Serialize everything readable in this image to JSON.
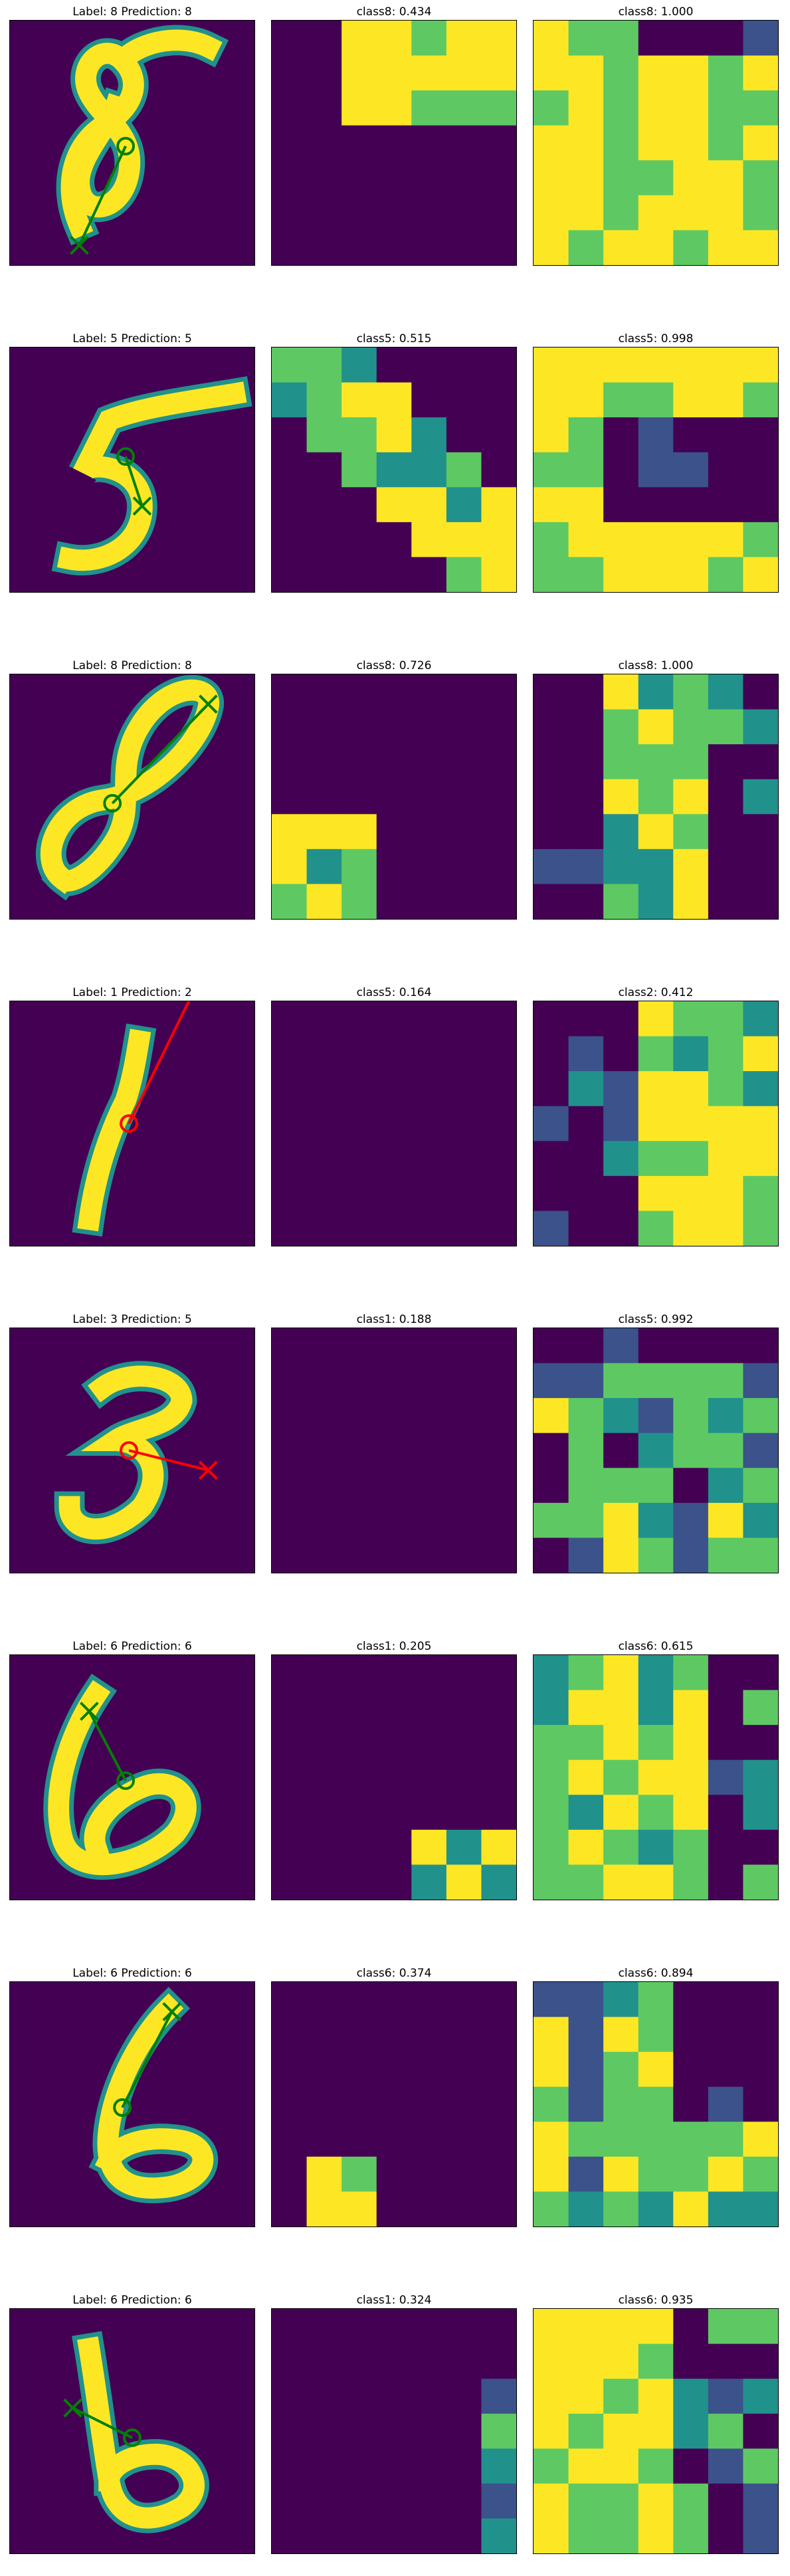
{
  "colors": {
    "low": "#440154",
    "midlow": "#3b528b",
    "mid": "#21918c",
    "midhigh": "#5ec962",
    "high": "#fde725",
    "correct": "#008000",
    "wrong": "#ff0000"
  },
  "rows": [
    {
      "main_title": "Label: 8 Prediction: 8",
      "top_title": "class8: 0.434",
      "pred_title": "class8: 1.000",
      "correct": true
    },
    {
      "main_title": "Label: 5 Prediction: 5",
      "top_title": "class5: 0.515",
      "pred_title": "class5: 0.998",
      "correct": true
    },
    {
      "main_title": "Label: 8 Prediction: 8",
      "top_title": "class8: 0.726",
      "pred_title": "class8: 1.000",
      "correct": true
    },
    {
      "main_title": "Label: 1 Prediction: 2",
      "top_title": "class5: 0.164",
      "pred_title": "class2: 0.412",
      "correct": false
    },
    {
      "main_title": "Label: 3 Prediction: 5",
      "top_title": "class1: 0.188",
      "pred_title": "class5: 0.992",
      "correct": false
    },
    {
      "main_title": "Label: 6 Prediction: 6",
      "top_title": "class1: 0.205",
      "pred_title": "class6: 0.615",
      "correct": true
    },
    {
      "main_title": "Label: 6 Prediction: 6",
      "top_title": "class6: 0.374",
      "pred_title": "class6: 0.894",
      "correct": true
    },
    {
      "main_title": "Label: 6 Prediction: 6",
      "top_title": "class1: 0.324",
      "pred_title": "class6: 0.935",
      "correct": true
    }
  ]
}
